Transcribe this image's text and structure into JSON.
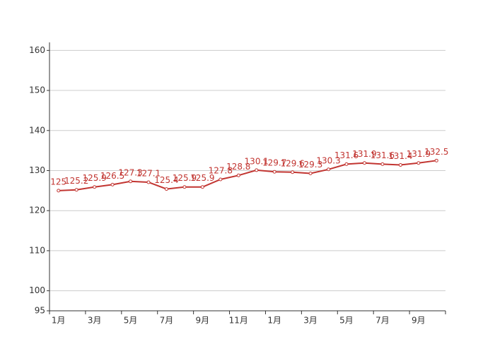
{
  "chart_data": {
    "type": "line",
    "categories": [
      "1月",
      null,
      "3月",
      null,
      "5月",
      null,
      "7月",
      null,
      "9月",
      null,
      "11月",
      null,
      "1月",
      null,
      "3月",
      null,
      "5月",
      null,
      "7月",
      null,
      "9月",
      null
    ],
    "values": [
      125,
      125.2,
      125.9,
      126.5,
      127.3,
      127.1,
      125.4,
      125.9,
      125.9,
      127.8,
      128.8,
      130.1,
      129.7,
      129.6,
      129.3,
      130.3,
      131.6,
      131.9,
      131.6,
      131.4,
      131.9,
      132.5
    ],
    "color": "#c23531",
    "ylim": [
      95,
      162
    ],
    "yticks": [
      95,
      100,
      110,
      120,
      130,
      140,
      150,
      160
    ],
    "grid": true
  }
}
